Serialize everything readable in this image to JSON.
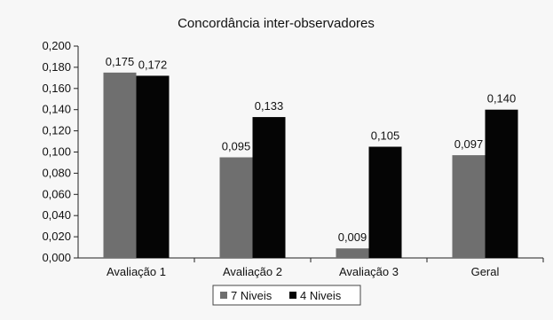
{
  "chart_data": {
    "type": "bar",
    "title": "Concordância inter-observadores",
    "xlabel": "",
    "ylabel": "",
    "ylim": [
      0,
      0.2
    ],
    "ytick_step": 0.02,
    "ytick_format_decimals": 3,
    "categories": [
      "Avaliação 1",
      "Avaliação 2",
      "Avaliação 3",
      "Geral"
    ],
    "series": [
      {
        "name": "7 Niveis",
        "color": "#6f6f6f",
        "values": [
          0.175,
          0.095,
          0.009,
          0.097
        ],
        "labels": [
          "0,175",
          "0,095",
          "0,009",
          "0,097"
        ]
      },
      {
        "name": "4 Niveis",
        "color": "#050505",
        "values": [
          0.172,
          0.133,
          0.105,
          0.14
        ],
        "labels": [
          "0,172",
          "0,133",
          "0,105",
          "0,140"
        ]
      }
    ],
    "legend_position": "bottom",
    "grid": false
  }
}
